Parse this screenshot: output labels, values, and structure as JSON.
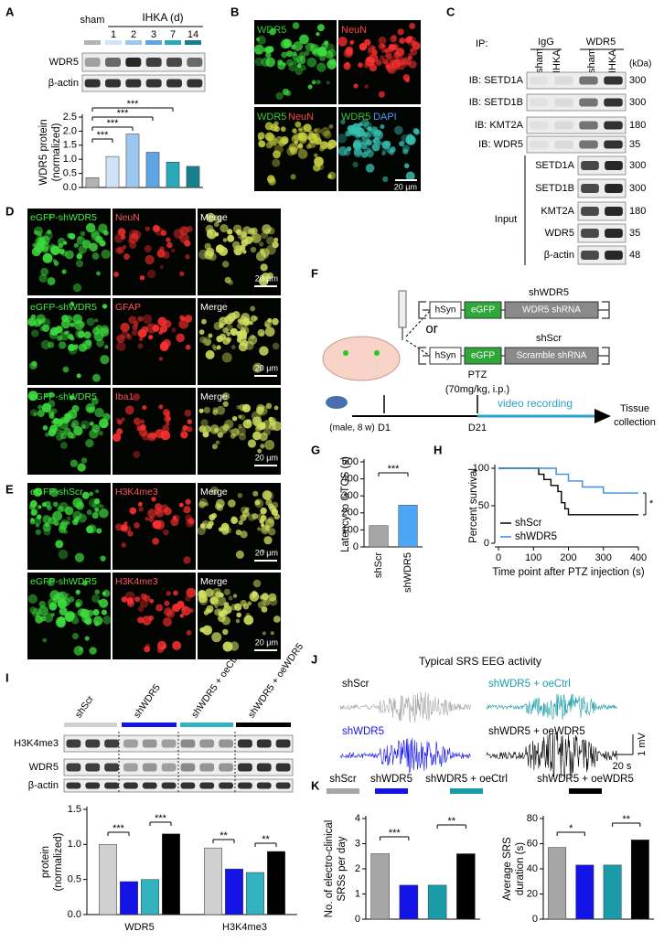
{
  "figure": {
    "A": {
      "letter": "A",
      "sham": "sham",
      "ihka": "IHKA (d)",
      "days": [
        "1",
        "2",
        "3",
        "7",
        "14"
      ],
      "blots": [
        "WDR5",
        "β-actin"
      ]
    },
    "B": {
      "letter": "B",
      "labels": [
        "WDR5",
        "NeuN",
        "WDR5",
        "NeuN",
        "WDR5",
        "DAPI"
      ],
      "scale": "20 μm"
    },
    "C": {
      "letter": "C",
      "ip": "IP:",
      "ip_groups": [
        "IgG",
        "WDR5"
      ],
      "lanes": [
        "sham",
        "IHKA",
        "sham",
        "IHKA"
      ],
      "kda": "(kDa)",
      "ib_rows": [
        {
          "label": "IB: SETD1A",
          "kda": "300"
        },
        {
          "label": "IB: SETD1B",
          "kda": "300"
        },
        {
          "label": "IB: KMT2A",
          "kda": "180"
        },
        {
          "label": "IB: WDR5",
          "kda": "35"
        }
      ],
      "input": "Input",
      "input_rows": [
        {
          "label": "SETD1A",
          "kda": "300"
        },
        {
          "label": "SETD1B",
          "kda": "300"
        },
        {
          "label": "KMT2A",
          "kda": "180"
        },
        {
          "label": "WDR5",
          "kda": "35"
        },
        {
          "label": "β-actin",
          "kda": "48"
        }
      ]
    },
    "D": {
      "letter": "D",
      "rows": [
        [
          "eGFP-shWDR5",
          "NeuN",
          "Merge"
        ],
        [
          "eGFP-shWDR5",
          "GFAP",
          "Merge"
        ],
        [
          "eGFP-shWDR5",
          "Iba1",
          "Merge"
        ]
      ],
      "scale": "20 μm"
    },
    "E": {
      "letter": "E",
      "rows": [
        [
          "eGFP-shScr",
          "H3K4me3",
          "Merge"
        ],
        [
          "eGFP-shWDR5",
          "H3K4me3",
          "Merge"
        ]
      ],
      "scale": "20 μm"
    },
    "F": {
      "letter": "F",
      "constructs": [
        {
          "name": "shWDR5",
          "parts": [
            "hSyn",
            "eGFP",
            "WDR5 shRNA"
          ]
        },
        {
          "name": "shScr",
          "parts": [
            "hSyn",
            "eGFP",
            "Scramble shRNA"
          ]
        }
      ],
      "or": "or",
      "ptz": "PTZ",
      "dose": "(70mg/kg, i.p.)",
      "mouse": "(male, 8 w)",
      "days": [
        "D1",
        "D21"
      ],
      "recording": "video recording",
      "end": [
        "Tissue",
        "collection"
      ]
    },
    "G": {
      "letter": "G"
    },
    "H": {
      "letter": "H"
    },
    "I": {
      "letter": "I",
      "blots": [
        "H3K4me3",
        "WDR5",
        "β-actin"
      ]
    },
    "J": {
      "letter": "J",
      "title": "Typical SRS EEG activity",
      "traces": [
        "shScr",
        "shWDR5 + oeCtrl",
        "shWDR5",
        "shWDR5 + oeWDR5"
      ],
      "scale_v": "1 mV",
      "scale_t": "20 s"
    },
    "K": {
      "letter": "K",
      "legend": [
        "shScr",
        "shWDR5",
        "shWDR5 + oeCtrl",
        "shWDR5 + oeWDR5"
      ],
      "colors": [
        "#a6a6a6",
        "#1414e6",
        "#1a9ca8",
        "#000000"
      ]
    }
  },
  "chart_data": [
    {
      "type": "bar",
      "ylabel": [
        "WDR5 protein",
        "(normalized)"
      ],
      "categories": [
        null,
        null,
        null,
        null,
        null,
        null
      ],
      "values": [
        0.35,
        1.1,
        1.9,
        1.25,
        0.9,
        0.75
      ],
      "colors": [
        "#b3b3b3",
        "#cfe3f7",
        "#9cc8f0",
        "#5fa4e4",
        "#2aa9b9",
        "#17808c"
      ],
      "ylim": [
        0,
        2.5
      ],
      "yticks": [
        {
          "value": 0,
          "label": "0.0"
        },
        {
          "value": 0.5,
          "label": "0.5"
        },
        {
          "value": 1,
          "label": "1.0"
        },
        {
          "value": 1.5,
          "label": "1.5"
        },
        {
          "value": 2,
          "label": "2.0"
        },
        {
          "value": 2.5,
          "label": "2.5"
        }
      ],
      "annotations": [
        "***",
        "***",
        "***",
        "***"
      ]
    },
    {
      "type": "bar",
      "ylabel": [
        "Latency to GTCS (s)"
      ],
      "categories": [
        "shScr",
        "shWDR5"
      ],
      "values": [
        125,
        245
      ],
      "colors": [
        "#a6a6a6",
        "#4da6f5"
      ],
      "ylim": [
        0,
        500
      ],
      "yticks": [
        0,
        100,
        200,
        300,
        400,
        500
      ],
      "annotations": [
        "***"
      ]
    },
    {
      "type": "line",
      "step": true,
      "ylabel": [
        "Percent survival"
      ],
      "xlabel": "Time point after PTZ injection (s)",
      "x": [
        0,
        115,
        130,
        150,
        165,
        170,
        180,
        190,
        200,
        240,
        300,
        400
      ],
      "series": [
        {
          "name": "shScr",
          "color": "#000000",
          "values": [
            100,
            92,
            85,
            77,
            77,
            69,
            54,
            46,
            38,
            38,
            38,
            38
          ]
        },
        {
          "name": "shWDR5",
          "color": "#3c8ce0",
          "values": [
            100,
            100,
            100,
            100,
            92,
            92,
            92,
            92,
            83,
            75,
            67,
            67
          ]
        }
      ],
      "xlim": [
        0,
        400
      ],
      "xticks": [
        0,
        100,
        200,
        300,
        400
      ],
      "ylim": [
        0,
        100
      ],
      "yticks": [
        0,
        50,
        100
      ],
      "legend": "lower left",
      "annotations": [
        "*"
      ]
    },
    {
      "type": "bar",
      "ylabel": [
        "protein",
        "(normalized)"
      ],
      "categories": [
        "WDR5",
        "H3K4me3"
      ],
      "series": [
        {
          "name": "shScr",
          "color": "#d0d0d0",
          "values": [
            1.0,
            0.95
          ]
        },
        {
          "name": "shWDR5",
          "color": "#1414e6",
          "values": [
            0.47,
            0.65
          ]
        },
        {
          "name": "shWDR5 + oeCtrl",
          "color": "#33b3bf",
          "values": [
            0.5,
            0.6
          ]
        },
        {
          "name": "shWDR5 + oeWDR5",
          "color": "#000000",
          "values": [
            1.15,
            0.9
          ]
        }
      ],
      "ylim": [
        0,
        1.5
      ],
      "yticks": [
        {
          "value": 0,
          "label": "0.0"
        },
        {
          "value": 0.5,
          "label": "0.5"
        },
        {
          "value": 1,
          "label": "1.0"
        },
        {
          "value": 1.5,
          "label": "1.5"
        }
      ],
      "annotations": [
        "***",
        "***",
        "**",
        "**"
      ]
    },
    {
      "type": "bar",
      "ylabel": [
        "No. of electro-clinical",
        "SRSs per day"
      ],
      "categories": [
        null,
        null,
        null,
        null
      ],
      "values": [
        2.6,
        1.35,
        1.35,
        2.6
      ],
      "colors": [
        "#a6a6a6",
        "#1414e6",
        "#1a9ca8",
        "#000000"
      ],
      "ylim": [
        0,
        4
      ],
      "yticks": [
        0,
        1,
        2,
        3,
        4
      ],
      "annotations": [
        "***",
        "**"
      ]
    },
    {
      "type": "bar",
      "ylabel": [
        "Average SRS",
        "duration (s)"
      ],
      "categories": [
        null,
        null,
        null,
        null
      ],
      "values": [
        57,
        43,
        43,
        63
      ],
      "colors": [
        "#a6a6a6",
        "#1414e6",
        "#1a9ca8",
        "#000000"
      ],
      "ylim": [
        0,
        80
      ],
      "yticks": [
        0,
        20,
        40,
        60,
        80
      ],
      "annotations": [
        "*",
        "**"
      ]
    }
  ]
}
